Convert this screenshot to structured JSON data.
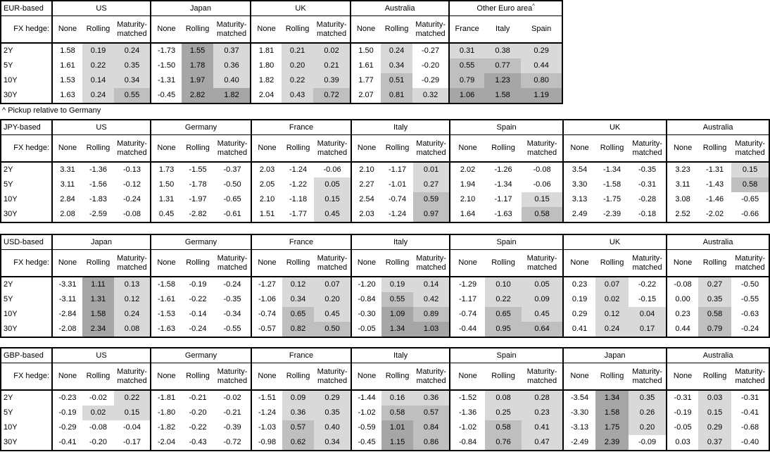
{
  "footnote": "^ Pickup relative to Germany",
  "fx_hedge_label": "FX hedge:",
  "hedge_columns": [
    "None",
    "Rolling",
    "Maturity-matched"
  ],
  "tenors": [
    "2Y",
    "5Y",
    "10Y",
    "30Y"
  ],
  "shading": {
    "rule": "applies to all columns except None; value<0 white; 0 to <0.5 light; 0.5 to <1.0 medium; >=1.0 dark",
    "light": "#d9d9d9",
    "medium": "#bfbfbf",
    "dark": "#a6a6a6",
    "none": "#ffffff"
  },
  "chart_data": [
    {
      "type": "table",
      "base_label": "EUR-based",
      "groups": [
        {
          "country": "US",
          "values": [
            [
              "1.58",
              "0.19",
              "0.24"
            ],
            [
              "1.61",
              "0.22",
              "0.35"
            ],
            [
              "1.53",
              "0.14",
              "0.34"
            ],
            [
              "1.63",
              "0.24",
              "0.55"
            ]
          ]
        },
        {
          "country": "Japan",
          "values": [
            [
              "-1.73",
              "1.55",
              "0.37"
            ],
            [
              "-1.50",
              "1.78",
              "0.36"
            ],
            [
              "-1.31",
              "1.97",
              "0.40"
            ],
            [
              "-0.45",
              "2.82",
              "1.82"
            ]
          ]
        },
        {
          "country": "UK",
          "values": [
            [
              "1.81",
              "0.21",
              "0.02"
            ],
            [
              "1.80",
              "0.20",
              "0.21"
            ],
            [
              "1.82",
              "0.22",
              "0.39"
            ],
            [
              "2.04",
              "0.43",
              "0.72"
            ]
          ]
        },
        {
          "country": "Australia",
          "values": [
            [
              "1.50",
              "0.24",
              "-0.27"
            ],
            [
              "1.61",
              "0.34",
              "-0.20"
            ],
            [
              "1.77",
              "0.51",
              "-0.29"
            ],
            [
              "2.07",
              "0.81",
              "0.32"
            ]
          ]
        },
        {
          "country": "Other Euro area",
          "sup": "^",
          "columns": [
            "France",
            "Italy",
            "Spain"
          ],
          "shade_all": true,
          "values": [
            [
              "0.31",
              "0.38",
              "0.29"
            ],
            [
              "0.55",
              "0.77",
              "0.44"
            ],
            [
              "0.79",
              "1.23",
              "0.80"
            ],
            [
              "1.06",
              "1.58",
              "1.19"
            ]
          ]
        }
      ]
    },
    {
      "type": "table",
      "base_label": "JPY-based",
      "groups": [
        {
          "country": "US",
          "values": [
            [
              "3.31",
              "-1.36",
              "-0.13"
            ],
            [
              "3.11",
              "-1.56",
              "-0.12"
            ],
            [
              "2.84",
              "-1.83",
              "-0.24"
            ],
            [
              "2.08",
              "-2.59",
              "-0.08"
            ]
          ]
        },
        {
          "country": "Germany",
          "values": [
            [
              "1.73",
              "-1.55",
              "-0.37"
            ],
            [
              "1.50",
              "-1.78",
              "-0.50"
            ],
            [
              "1.31",
              "-1.97",
              "-0.65"
            ],
            [
              "0.45",
              "-2.82",
              "-0.61"
            ]
          ]
        },
        {
          "country": "France",
          "values": [
            [
              "2.03",
              "-1.24",
              "-0.06"
            ],
            [
              "2.05",
              "-1.22",
              "0.05"
            ],
            [
              "2.10",
              "-1.18",
              "0.15"
            ],
            [
              "1.51",
              "-1.77",
              "0.45"
            ]
          ]
        },
        {
          "country": "Italy",
          "values": [
            [
              "2.10",
              "-1.17",
              "0.01"
            ],
            [
              "2.27",
              "-1.01",
              "0.27"
            ],
            [
              "2.54",
              "-0.74",
              "0.59"
            ],
            [
              "2.03",
              "-1.24",
              "0.97"
            ]
          ]
        },
        {
          "country": "Spain",
          "values": [
            [
              "2.02",
              "-1.26",
              "-0.08"
            ],
            [
              "1.94",
              "-1.34",
              "-0.06"
            ],
            [
              "2.10",
              "-1.17",
              "0.15"
            ],
            [
              "1.64",
              "-1.63",
              "0.58"
            ]
          ]
        },
        {
          "country": "UK",
          "values": [
            [
              "3.54",
              "-1.34",
              "-0.35"
            ],
            [
              "3.30",
              "-1.58",
              "-0.31"
            ],
            [
              "3.13",
              "-1.75",
              "-0.28"
            ],
            [
              "2.49",
              "-2.39",
              "-0.18"
            ]
          ]
        },
        {
          "country": "Australia",
          "values": [
            [
              "3.23",
              "-1.31",
              "0.15"
            ],
            [
              "3.11",
              "-1.43",
              "0.58"
            ],
            [
              "3.08",
              "-1.46",
              "-0.65"
            ],
            [
              "2.52",
              "-2.02",
              "-0.66"
            ]
          ]
        }
      ]
    },
    {
      "type": "table",
      "base_label": "USD-based",
      "groups": [
        {
          "country": "Japan",
          "values": [
            [
              "-3.31",
              "1.11",
              "0.13"
            ],
            [
              "-3.11",
              "1.31",
              "0.12"
            ],
            [
              "-2.84",
              "1.58",
              "0.24"
            ],
            [
              "-2.08",
              "2.34",
              "0.08"
            ]
          ]
        },
        {
          "country": "Germany",
          "values": [
            [
              "-1.58",
              "-0.19",
              "-0.24"
            ],
            [
              "-1.61",
              "-0.22",
              "-0.35"
            ],
            [
              "-1.53",
              "-0.14",
              "-0.34"
            ],
            [
              "-1.63",
              "-0.24",
              "-0.55"
            ]
          ]
        },
        {
          "country": "France",
          "values": [
            [
              "-1.27",
              "0.12",
              "0.07"
            ],
            [
              "-1.06",
              "0.34",
              "0.20"
            ],
            [
              "-0.74",
              "0.65",
              "0.45"
            ],
            [
              "-0.57",
              "0.82",
              "0.50"
            ]
          ]
        },
        {
          "country": "Italy",
          "values": [
            [
              "-1.20",
              "0.19",
              "0.14"
            ],
            [
              "-0.84",
              "0.55",
              "0.42"
            ],
            [
              "-0.30",
              "1.09",
              "0.89"
            ],
            [
              "-0.05",
              "1.34",
              "1.03"
            ]
          ]
        },
        {
          "country": "Spain",
          "values": [
            [
              "-1.29",
              "0.10",
              "0.05"
            ],
            [
              "-1.17",
              "0.22",
              "0.09"
            ],
            [
              "-0.74",
              "0.65",
              "0.45"
            ],
            [
              "-0.44",
              "0.95",
              "0.64"
            ]
          ]
        },
        {
          "country": "UK",
          "values": [
            [
              "0.23",
              "0.07",
              "-0.22"
            ],
            [
              "0.19",
              "0.02",
              "-0.15"
            ],
            [
              "0.29",
              "0.12",
              "0.04"
            ],
            [
              "0.41",
              "0.24",
              "0.17"
            ]
          ]
        },
        {
          "country": "Australia",
          "values": [
            [
              "-0.08",
              "0.27",
              "-0.50"
            ],
            [
              "0.00",
              "0.35",
              "-0.55"
            ],
            [
              "0.23",
              "0.58",
              "-0.63"
            ],
            [
              "0.44",
              "0.79",
              "-0.24"
            ]
          ]
        }
      ]
    },
    {
      "type": "table",
      "base_label": "GBP-based",
      "groups": [
        {
          "country": "US",
          "values": [
            [
              "-0.23",
              "-0.02",
              "0.22"
            ],
            [
              "-0.19",
              "0.02",
              "0.15"
            ],
            [
              "-0.29",
              "-0.08",
              "-0.04"
            ],
            [
              "-0.41",
              "-0.20",
              "-0.17"
            ]
          ]
        },
        {
          "country": "Germany",
          "values": [
            [
              "-1.81",
              "-0.21",
              "-0.02"
            ],
            [
              "-1.80",
              "-0.20",
              "-0.21"
            ],
            [
              "-1.82",
              "-0.22",
              "-0.39"
            ],
            [
              "-2.04",
              "-0.43",
              "-0.72"
            ]
          ]
        },
        {
          "country": "France",
          "values": [
            [
              "-1.51",
              "0.09",
              "0.29"
            ],
            [
              "-1.24",
              "0.36",
              "0.35"
            ],
            [
              "-1.03",
              "0.57",
              "0.40"
            ],
            [
              "-0.98",
              "0.62",
              "0.34"
            ]
          ]
        },
        {
          "country": "Italy",
          "values": [
            [
              "-1.44",
              "0.16",
              "0.36"
            ],
            [
              "-1.02",
              "0.58",
              "0.57"
            ],
            [
              "-0.59",
              "1.01",
              "0.84"
            ],
            [
              "-0.45",
              "1.15",
              "0.86"
            ]
          ]
        },
        {
          "country": "Spain",
          "values": [
            [
              "-1.52",
              "0.08",
              "0.28"
            ],
            [
              "-1.36",
              "0.25",
              "0.23"
            ],
            [
              "-1.02",
              "0.58",
              "0.41"
            ],
            [
              "-0.84",
              "0.76",
              "0.47"
            ]
          ]
        },
        {
          "country": "Japan",
          "values": [
            [
              "-3.54",
              "1.34",
              "0.35"
            ],
            [
              "-3.30",
              "1.58",
              "0.26"
            ],
            [
              "-3.13",
              "1.75",
              "0.20"
            ],
            [
              "-2.49",
              "2.39",
              "-0.09"
            ]
          ]
        },
        {
          "country": "Australia",
          "values": [
            [
              "-0.31",
              "0.03",
              "-0.31"
            ],
            [
              "-0.19",
              "0.15",
              "-0.41"
            ],
            [
              "-0.05",
              "0.29",
              "-0.68"
            ],
            [
              "0.03",
              "0.37",
              "-0.40"
            ]
          ]
        }
      ]
    }
  ]
}
